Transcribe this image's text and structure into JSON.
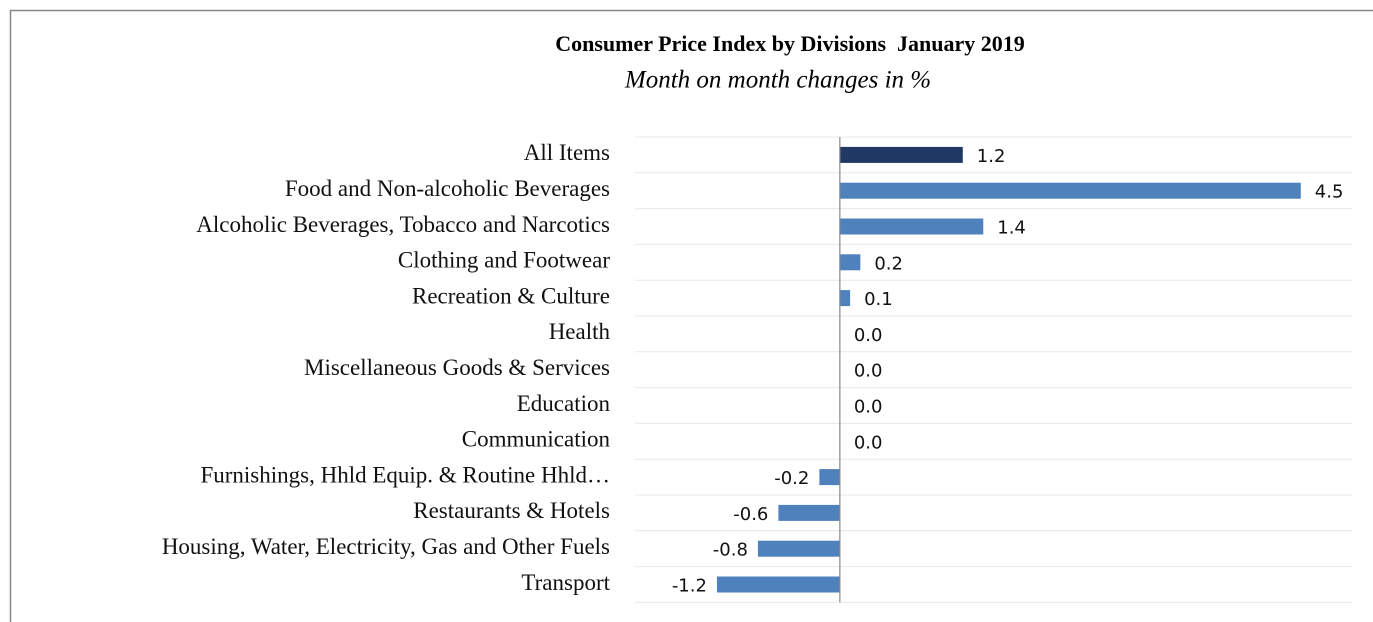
{
  "chart_data": {
    "type": "barh",
    "title": "Consumer Price Index by Divisions  January 2019",
    "subtitle": "Month on month changes in %",
    "categories": [
      "All Items",
      "Food and Non-alcoholic Beverages",
      "Alcoholic Beverages, Tobacco and Narcotics",
      "Clothing and Footwear",
      "Recreation & Culture",
      "Health",
      "Miscellaneous Goods & Services",
      "Education",
      "Communication",
      "Furnishings, Hhld Equip. & Routine Hhld…",
      "Restaurants & Hotels",
      "Housing, Water, Electricity, Gas and Other Fuels",
      "Transport"
    ],
    "values": [
      1.2,
      4.5,
      1.4,
      0.2,
      0.1,
      0,
      0,
      0,
      0,
      -0.2,
      -0.6,
      -0.8,
      -1.2
    ],
    "value_labels": [
      "1.2",
      "4.5",
      "1.4",
      "0.2",
      "0.1",
      "0.0",
      "0.0",
      "0.0",
      "0.0",
      "-0.2",
      "-0.6",
      "-0.8",
      "-1.2"
    ],
    "colors": [
      "#1f3864",
      "#4f81bd",
      "#4f81bd",
      "#4f81bd",
      "#4f81bd",
      "#4f81bd",
      "#4f81bd",
      "#4f81bd",
      "#4f81bd",
      "#4f81bd",
      "#4f81bd",
      "#4f81bd",
      "#4f81bd"
    ],
    "xlim": [
      -2,
      5
    ],
    "grid": true
  }
}
